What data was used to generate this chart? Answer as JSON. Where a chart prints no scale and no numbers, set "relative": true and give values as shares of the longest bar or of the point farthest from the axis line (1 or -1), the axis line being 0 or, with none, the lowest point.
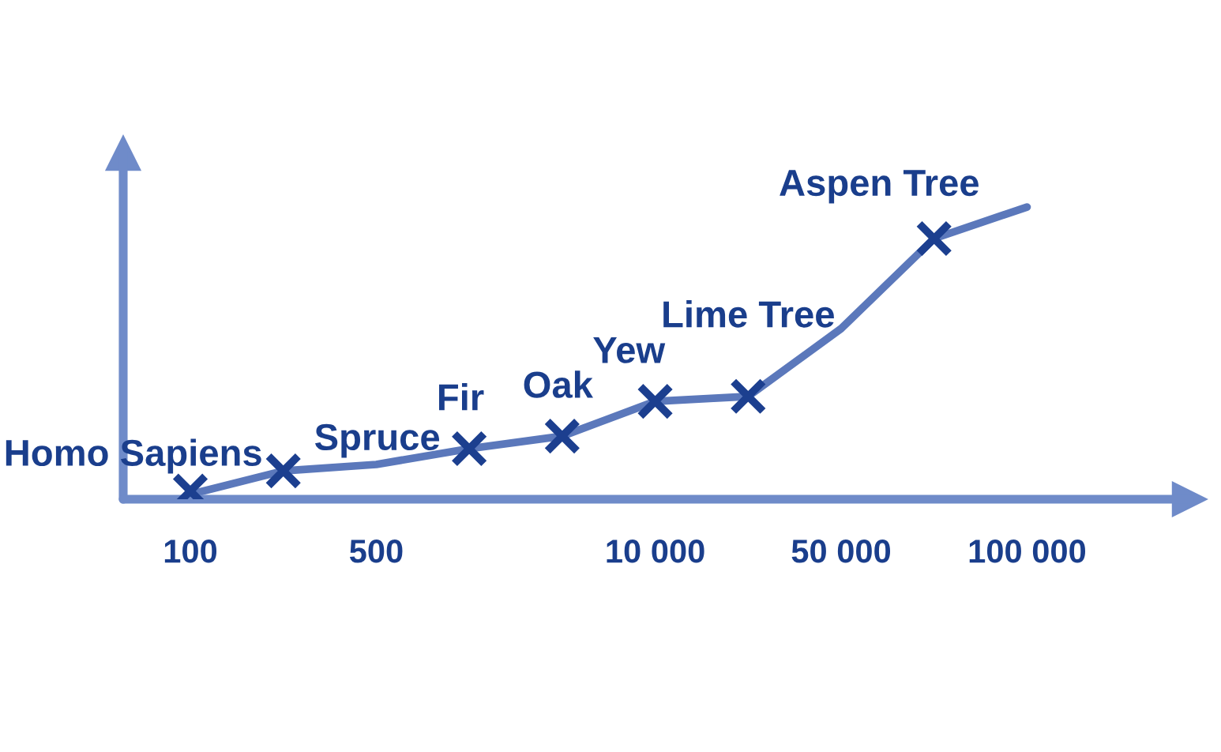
{
  "chart_data": {
    "type": "scatter",
    "relative": true,
    "marker": "cross",
    "categories": [
      "100",
      null,
      "500",
      null,
      null,
      "10 000",
      null,
      "50 000",
      null,
      "100 000"
    ],
    "series": [
      {
        "type": "line",
        "color": "#5b78bb",
        "marker": "none",
        "values": [
          0.017,
          0.097,
          0.119,
          0.173,
          0.216,
          0.335,
          0.352,
          0.584,
          0.892,
          1
        ]
      },
      {
        "name": "Homo Sapiens",
        "color": "#1c3f8f",
        "values": [
          0.028,
          null,
          null,
          null,
          null,
          null,
          null,
          null,
          null,
          null
        ]
      },
      {
        "name": "Spruce",
        "color": "#1c3f8f",
        "values": [
          null,
          0.097,
          null,
          null,
          null,
          null,
          null,
          null,
          null,
          null
        ]
      },
      {
        "name": "Fir",
        "color": "#1c3f8f",
        "values": [
          null,
          null,
          null,
          0.173,
          null,
          null,
          null,
          null,
          null,
          null
        ]
      },
      {
        "name": "Oak",
        "color": "#1c3f8f",
        "values": [
          null,
          null,
          null,
          null,
          0.216,
          null,
          null,
          null,
          null,
          null
        ]
      },
      {
        "name": "Yew",
        "color": "#1c3f8f",
        "values": [
          null,
          null,
          null,
          null,
          null,
          0.335,
          null,
          null,
          null,
          null
        ]
      },
      {
        "name": "Lime Tree",
        "color": "#1c3f8f",
        "values": [
          null,
          null,
          null,
          null,
          null,
          null,
          0.352,
          null,
          null,
          null
        ]
      },
      {
        "name": "Aspen Tree",
        "color": "#1c3f8f",
        "values": [
          null,
          null,
          null,
          null,
          null,
          null,
          null,
          null,
          0.892,
          null
        ]
      }
    ]
  }
}
